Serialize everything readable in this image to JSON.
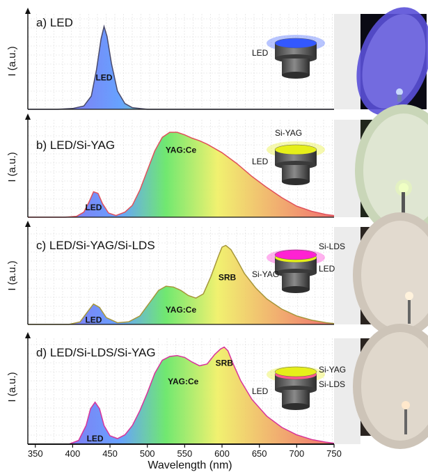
{
  "chart_data": {
    "type": "area",
    "xlabel": "Wavelength (nm)",
    "ylabel": "I (a.u.)",
    "xlim": [
      340,
      750
    ],
    "x_ticks": [
      350,
      400,
      450,
      500,
      550,
      600,
      650,
      700,
      750
    ],
    "grid": true,
    "panels": [
      {
        "title": "a) LED",
        "line_color": "#4a4a6a",
        "x": [
          340,
          380,
          400,
          415,
          425,
          432,
          438,
          442,
          446,
          452,
          460,
          470,
          480,
          500,
          550,
          650,
          750
        ],
        "y": [
          0.0,
          0.0,
          0.01,
          0.04,
          0.16,
          0.48,
          0.85,
          1.0,
          0.88,
          0.55,
          0.22,
          0.07,
          0.02,
          0.0,
          0.0,
          0.0,
          0.0
        ],
        "peak_labels": [
          {
            "text": "LED",
            "x": 442,
            "y": 0.35
          }
        ],
        "device": {
          "layers": [
            {
              "label": "LED",
              "color": "#3358ff"
            }
          ]
        }
      },
      {
        "title": "b) LED/Si-YAG",
        "line_color": "#e0505a",
        "x": [
          340,
          390,
          405,
          415,
          422,
          428,
          434,
          440,
          448,
          458,
          470,
          480,
          490,
          500,
          510,
          520,
          530,
          540,
          550,
          560,
          570,
          580,
          600,
          620,
          640,
          660,
          680,
          700,
          720,
          740,
          750
        ],
        "y": [
          0.0,
          0.0,
          0.01,
          0.06,
          0.18,
          0.3,
          0.28,
          0.16,
          0.05,
          0.02,
          0.06,
          0.14,
          0.32,
          0.55,
          0.78,
          0.94,
          1.0,
          1.0,
          0.97,
          0.93,
          0.9,
          0.86,
          0.76,
          0.63,
          0.48,
          0.35,
          0.23,
          0.13,
          0.07,
          0.03,
          0.02
        ],
        "peak_labels": [
          {
            "text": "YAG:Ce",
            "x": 545,
            "y": 0.76
          },
          {
            "text": "LED",
            "x": 428,
            "y": 0.08
          }
        ],
        "device": {
          "layers": [
            {
              "label": "Si-YAG",
              "color": "#e6ef1a"
            },
            {
              "label": "LED",
              "color": ""
            }
          ]
        }
      },
      {
        "title": "c) LED/Si-YAG/Si-LDS",
        "line_color": "#a6963a",
        "x": [
          340,
          395,
          410,
          420,
          428,
          436,
          445,
          460,
          475,
          490,
          505,
          515,
          525,
          535,
          545,
          555,
          565,
          575,
          585,
          595,
          600,
          605,
          612,
          620,
          630,
          645,
          660,
          680,
          700,
          720,
          740,
          750
        ],
        "y": [
          0.0,
          0.0,
          0.03,
          0.15,
          0.24,
          0.2,
          0.08,
          0.02,
          0.03,
          0.1,
          0.28,
          0.4,
          0.45,
          0.44,
          0.4,
          0.34,
          0.31,
          0.36,
          0.56,
          0.8,
          0.91,
          0.93,
          0.88,
          0.76,
          0.6,
          0.43,
          0.3,
          0.18,
          0.1,
          0.05,
          0.02,
          0.01
        ],
        "peak_labels": [
          {
            "text": "SRB",
            "x": 607,
            "y": 0.52
          },
          {
            "text": "YAG:Ce",
            "x": 545,
            "y": 0.14
          },
          {
            "text": "LED",
            "x": 428,
            "y": 0.02
          }
        ],
        "device": {
          "layers": [
            {
              "label": "Si-LDS",
              "color": "#ff22d2"
            },
            {
              "label": "Si-YAG",
              "color": "#e6ef1a"
            },
            {
              "label": "LED",
              "color": ""
            }
          ]
        }
      },
      {
        "title": "d) LED/Si-LDS/Si-YAG",
        "line_color": "#d8339a",
        "x": [
          340,
          395,
          408,
          418,
          424,
          430,
          436,
          442,
          450,
          460,
          470,
          480,
          490,
          500,
          510,
          520,
          530,
          540,
          550,
          560,
          570,
          580,
          590,
          598,
          603,
          608,
          615,
          625,
          640,
          660,
          680,
          700,
          720,
          740,
          750
        ],
        "y": [
          0.0,
          0.0,
          0.04,
          0.2,
          0.38,
          0.45,
          0.38,
          0.2,
          0.09,
          0.06,
          0.1,
          0.2,
          0.36,
          0.55,
          0.76,
          0.9,
          0.94,
          0.95,
          0.93,
          0.88,
          0.84,
          0.86,
          0.96,
          1.02,
          1.04,
          1.0,
          0.86,
          0.68,
          0.48,
          0.3,
          0.18,
          0.1,
          0.05,
          0.02,
          0.01
        ],
        "peak_labels": [
          {
            "text": "YAG:Ce",
            "x": 548,
            "y": 0.64
          },
          {
            "text": "SRB",
            "x": 603,
            "y": 0.84
          },
          {
            "text": "LED",
            "x": 430,
            "y": 0.03
          }
        ],
        "device": {
          "layers": [
            {
              "label": "Si-YAG",
              "color": "#e6ef1a"
            },
            {
              "label": "Si-LDS",
              "color": "#ff5a8c"
            },
            {
              "label": "LED",
              "color": ""
            }
          ]
        }
      }
    ]
  },
  "colors": {
    "spectrum_violet": "#8c50e6",
    "spectrum_blue": "#5a9aff",
    "spectrum_green": "#64e664",
    "spectrum_yellow": "#f0f064",
    "spectrum_red": "#f06464",
    "device_body": "#5a5a5a"
  }
}
